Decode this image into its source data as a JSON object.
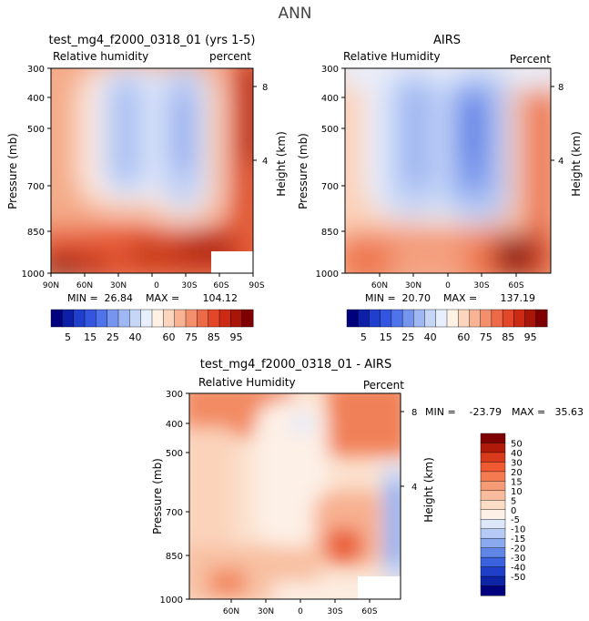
{
  "page_title": "ANN",
  "chart_data": [
    {
      "type": "heatmap",
      "title": "test_mg4_f2000_0318_01 (yrs 1-5)",
      "subtitle_left": "Relative humidity",
      "subtitle_right": "percent",
      "ylabel": "Pressure (mb)",
      "ylabel_right": "Height (km)",
      "y_ticks": [
        "300",
        "400",
        "500",
        "700",
        "850",
        "1000"
      ],
      "y_right_ticks": [
        "8",
        "4"
      ],
      "x_ticks": [
        "90N",
        "60N",
        "30N",
        "0",
        "30S",
        "60S",
        "90S"
      ],
      "stats": {
        "min_label": "MIN =",
        "min": "26.84",
        "max_label": "MAX =",
        "max": "104.12"
      },
      "z_range": [
        0,
        100
      ]
    },
    {
      "type": "heatmap",
      "title": "AIRS",
      "subtitle_left": "Relative Humidity",
      "subtitle_right": "Percent",
      "ylabel": "Pressure (mb)",
      "ylabel_right": "Height (km)",
      "y_ticks": [
        "300",
        "400",
        "500",
        "700",
        "850",
        "1000"
      ],
      "y_right_ticks": [
        "8",
        "4"
      ],
      "x_ticks": [
        "60N",
        "30N",
        "0",
        "30S",
        "60S"
      ],
      "stats": {
        "min_label": "MIN =",
        "min": "20.70",
        "max_label": "MAX =",
        "max": "137.19"
      },
      "z_range": [
        0,
        100
      ]
    },
    {
      "type": "heatmap",
      "title": "test_mg4_f2000_0318_01 - AIRS",
      "subtitle_left": "Relative Humidity",
      "subtitle_right": "Percent",
      "ylabel": "Pressure (mb)",
      "ylabel_right": "Height (km)",
      "y_ticks": [
        "300",
        "400",
        "500",
        "700",
        "850",
        "1000"
      ],
      "y_right_ticks": [
        "8",
        "4"
      ],
      "x_ticks": [
        "60N",
        "30N",
        "0",
        "30S",
        "60S"
      ],
      "stats": {
        "min_label": "MIN =",
        "min": "-23.79",
        "max_label": "MAX =",
        "max": "35.63"
      },
      "z_range": [
        -55,
        55
      ]
    }
  ],
  "colorbar_top": {
    "orientation": "horizontal",
    "labels": [
      "5",
      "15",
      "25",
      "40",
      "60",
      "75",
      "85",
      "95"
    ],
    "colors": [
      "#00007f",
      "#0d1fa6",
      "#1f3fcc",
      "#3355e0",
      "#4e73ea",
      "#7595ef",
      "#9fb8f3",
      "#c6d6f7",
      "#e7eefc",
      "#fff2e5",
      "#fbd5bd",
      "#f7b394",
      "#f38f6d",
      "#ed6a48",
      "#e34628",
      "#cc2a14",
      "#a8160a",
      "#7f0000"
    ]
  },
  "colorbar_diff": {
    "orientation": "vertical",
    "labels": [
      "50",
      "40",
      "30",
      "20",
      "15",
      "10",
      "5",
      "0",
      "-5",
      "-10",
      "-15",
      "-20",
      "-30",
      "-40",
      "-50"
    ],
    "colors": [
      "#7f0000",
      "#b01a0a",
      "#d83a1c",
      "#ef5a32",
      "#f47a50",
      "#f59c76",
      "#f8bc9c",
      "#fbdcc6",
      "#fdf0e6",
      "#dde7fa",
      "#b5caf4",
      "#8aa9ee",
      "#5f86e6",
      "#3a62dc",
      "#1f3fc9",
      "#0d24a4",
      "#00007f"
    ]
  },
  "colors": {
    "text": "#000000",
    "title": "#333333"
  }
}
